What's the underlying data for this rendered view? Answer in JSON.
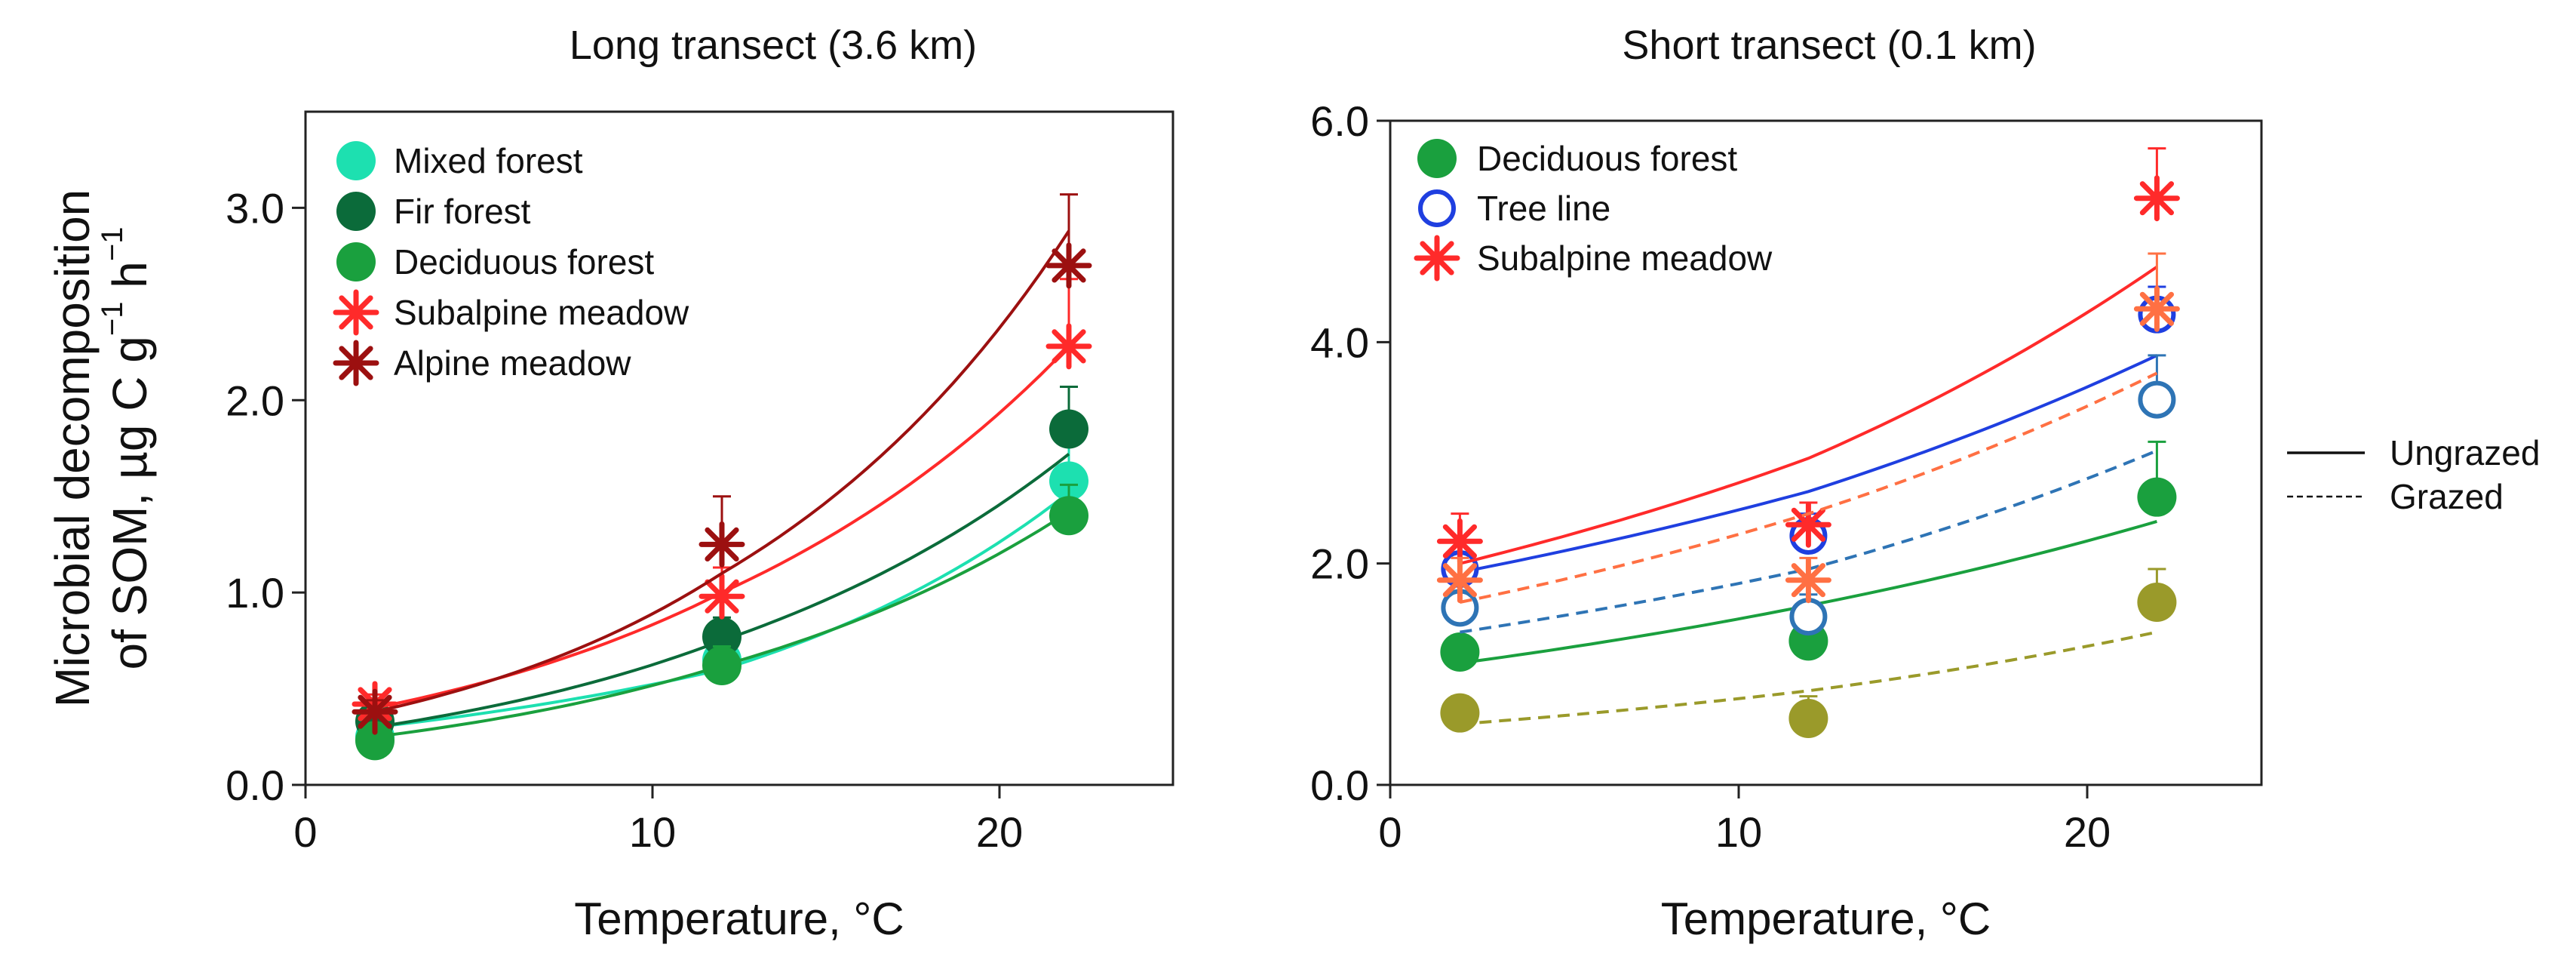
{
  "chart_data": [
    {
      "type": "scatter",
      "title": "Long  transect (3.6 km)",
      "xlabel": "Temperature, °C",
      "ylabel_line1": "Microbial decomposition",
      "ylabel_line2": "of SOM, µg C g",
      "ylabel_sup1": "−1",
      "ylabel_mid": " h",
      "ylabel_sup2": "−1",
      "xlim": [
        0,
        25
      ],
      "ylim": [
        0,
        3.5
      ],
      "xticks": [
        0,
        10,
        20
      ],
      "xtick_labels": [
        "0",
        "10",
        "20"
      ],
      "yticks": [
        0,
        1,
        2,
        3
      ],
      "ytick_labels": [
        "0.0",
        "1.0",
        "2.0",
        "3.0"
      ],
      "series": [
        {
          "name": "Mixed forest",
          "color": "#1de0b0",
          "marker": "circle",
          "x": [
            2,
            12,
            22
          ],
          "y": [
            0.25,
            0.65,
            1.58
          ],
          "err": [
            0.05,
            0.08,
            0.2
          ],
          "fit": [
            0.3,
            0.6,
            1.52
          ]
        },
        {
          "name": "Fir forest",
          "color": "#0b6b3a",
          "marker": "circle",
          "x": [
            2,
            12,
            22
          ],
          "y": [
            0.33,
            0.77,
            1.85
          ],
          "err": [
            0.06,
            0.1,
            0.22
          ],
          "fit": [
            0.3,
            0.75,
            1.72
          ]
        },
        {
          "name": "Deciduous forest",
          "color": "#1aa03e",
          "marker": "circle",
          "x": [
            2,
            12,
            22
          ],
          "y": [
            0.23,
            0.62,
            1.4
          ],
          "err": [
            0.04,
            0.1,
            0.16
          ],
          "fit": [
            0.25,
            0.62,
            1.42
          ]
        },
        {
          "name": "Subalpine meadow",
          "color": "#ff2a2a",
          "marker": "star",
          "x": [
            2,
            12,
            22
          ],
          "y": [
            0.42,
            0.98,
            2.28
          ],
          "err": [
            0.05,
            0.15,
            0.35
          ],
          "fit": [
            0.4,
            1.0,
            2.28
          ]
        },
        {
          "name": "Alpine meadow",
          "color": "#9c1010",
          "marker": "star",
          "x": [
            2,
            12,
            22
          ],
          "y": [
            0.38,
            1.25,
            2.7
          ],
          "err": [
            0.06,
            0.25,
            0.37
          ],
          "fit": [
            0.38,
            1.1,
            2.88
          ]
        }
      ]
    },
    {
      "type": "scatter",
      "title": "Short  transect (0.1 km)",
      "xlabel": "Temperature, °C",
      "xlim": [
        0,
        25
      ],
      "ylim": [
        0,
        6
      ],
      "xticks": [
        0,
        10,
        20
      ],
      "xtick_labels": [
        "0",
        "10",
        "20"
      ],
      "yticks": [
        0,
        2,
        4,
        6
      ],
      "ytick_labels": [
        "0.0",
        "2.0",
        "4.0",
        "6.0"
      ],
      "legend": [
        {
          "name": "Deciduous forest",
          "color": "#1aa03e",
          "marker": "circle"
        },
        {
          "name": "Tree line",
          "color": "#1f3fe0",
          "marker": "open-circle"
        },
        {
          "name": "Subalpine meadow",
          "color": "#ff2a2a",
          "marker": "star"
        }
      ],
      "line_legend": [
        {
          "label": "Ungrazed",
          "style": "solid"
        },
        {
          "label": "Grazed",
          "style": "dashed"
        }
      ],
      "series": [
        {
          "name": "Deciduous forest (ungrazed)",
          "color": "#1aa03e",
          "marker": "circle",
          "line": "solid",
          "x": [
            2,
            12,
            22
          ],
          "y": [
            1.2,
            1.3,
            2.6
          ],
          "err": [
            0.15,
            0.35,
            0.5
          ],
          "fit": [
            1.1,
            1.62,
            2.38
          ]
        },
        {
          "name": "Deciduous forest (grazed)",
          "color": "#9a9a2a",
          "marker": "circle",
          "line": "dashed",
          "x": [
            2,
            12,
            22
          ],
          "y": [
            0.65,
            0.6,
            1.65
          ],
          "err": [
            0.15,
            0.2,
            0.3
          ],
          "fit": [
            0.55,
            0.85,
            1.38
          ]
        },
        {
          "name": "Tree line (ungrazed)",
          "color": "#1f3fe0",
          "marker": "open-circle",
          "line": "solid",
          "x": [
            2,
            12,
            22
          ],
          "y": [
            1.95,
            2.25,
            4.25
          ],
          "err": [
            0.1,
            0.2,
            0.25
          ],
          "fit": [
            1.92,
            2.65,
            3.88
          ]
        },
        {
          "name": "Tree line (grazed)",
          "color": "#2e74b5",
          "marker": "open-circle",
          "line": "dashed",
          "x": [
            2,
            12,
            22
          ],
          "y": [
            1.6,
            1.52,
            3.48
          ],
          "err": [
            0.15,
            0.2,
            0.4
          ],
          "fit": [
            1.38,
            1.95,
            3.02
          ]
        },
        {
          "name": "Subalpine meadow (ungrazed)",
          "color": "#ff2a2a",
          "marker": "star",
          "line": "solid",
          "x": [
            2,
            12,
            22
          ],
          "y": [
            2.2,
            2.35,
            5.3
          ],
          "err": [
            0.25,
            0.2,
            0.45
          ],
          "fit": [
            2.0,
            2.95,
            4.68
          ]
        },
        {
          "name": "Subalpine meadow (grazed)",
          "color": "#ff7043",
          "marker": "star",
          "line": "dashed",
          "x": [
            2,
            12,
            22
          ],
          "y": [
            1.85,
            1.85,
            4.3
          ],
          "err": [
            0.2,
            0.2,
            0.5
          ],
          "fit": [
            1.65,
            2.45,
            3.72
          ]
        }
      ]
    }
  ]
}
